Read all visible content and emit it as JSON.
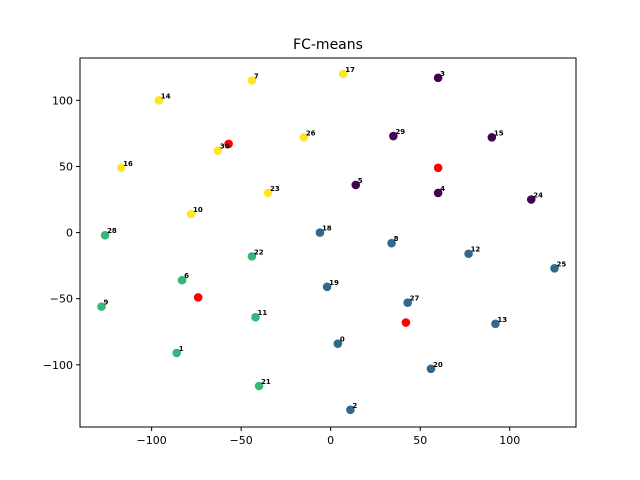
{
  "chart_data": {
    "type": "scatter",
    "title": "FC-means",
    "xlabel": "",
    "ylabel": "",
    "xlim": [
      -140,
      137
    ],
    "ylim": [
      -147,
      132
    ],
    "xticks": [
      -100,
      -50,
      0,
      50,
      100
    ],
    "yticks": [
      -100,
      -50,
      0,
      50,
      100
    ],
    "tick_labels_x": [
      "−100",
      "−50",
      "0",
      "50",
      "100"
    ],
    "tick_labels_y": [
      "−100",
      "−50",
      "0",
      "50",
      "100"
    ],
    "grid": false,
    "cluster_colors": [
      "#440154",
      "#31688e",
      "#35b779",
      "#fde725"
    ],
    "centroid_color": "#ff0000",
    "points": [
      {
        "label": "0",
        "x": 4,
        "y": -84,
        "cluster": 1
      },
      {
        "label": "1",
        "x": -86,
        "y": -91,
        "cluster": 2
      },
      {
        "label": "2",
        "x": 11,
        "y": -134,
        "cluster": 1
      },
      {
        "label": "3",
        "x": 60,
        "y": 117,
        "cluster": 0
      },
      {
        "label": "4",
        "x": 60,
        "y": 30,
        "cluster": 0
      },
      {
        "label": "5",
        "x": 14,
        "y": 36,
        "cluster": 0
      },
      {
        "label": "6",
        "x": -83,
        "y": -36,
        "cluster": 2
      },
      {
        "label": "7",
        "x": -44,
        "y": 115,
        "cluster": 3
      },
      {
        "label": "8",
        "x": 34,
        "y": -8,
        "cluster": 1
      },
      {
        "label": "9",
        "x": -128,
        "y": -56,
        "cluster": 2
      },
      {
        "label": "10",
        "x": -78,
        "y": 14,
        "cluster": 3
      },
      {
        "label": "11",
        "x": -42,
        "y": -64,
        "cluster": 2
      },
      {
        "label": "12",
        "x": 77,
        "y": -16,
        "cluster": 1
      },
      {
        "label": "13",
        "x": 92,
        "y": -69,
        "cluster": 1
      },
      {
        "label": "14",
        "x": -96,
        "y": 100,
        "cluster": 3
      },
      {
        "label": "15",
        "x": 90,
        "y": 72,
        "cluster": 0
      },
      {
        "label": "16",
        "x": -117,
        "y": 49,
        "cluster": 3
      },
      {
        "label": "17",
        "x": 7,
        "y": 120,
        "cluster": 3
      },
      {
        "label": "18",
        "x": -6,
        "y": 0,
        "cluster": 1
      },
      {
        "label": "19",
        "x": -2,
        "y": -41,
        "cluster": 1
      },
      {
        "label": "20",
        "x": 56,
        "y": -103,
        "cluster": 1
      },
      {
        "label": "21",
        "x": -40,
        "y": -116,
        "cluster": 2
      },
      {
        "label": "22",
        "x": -44,
        "y": -18,
        "cluster": 2
      },
      {
        "label": "23",
        "x": -35,
        "y": 30,
        "cluster": 3
      },
      {
        "label": "24",
        "x": 112,
        "y": 25,
        "cluster": 0
      },
      {
        "label": "25",
        "x": 125,
        "y": -27,
        "cluster": 1
      },
      {
        "label": "26",
        "x": -15,
        "y": 72,
        "cluster": 3
      },
      {
        "label": "27",
        "x": 43,
        "y": -53,
        "cluster": 1
      },
      {
        "label": "28",
        "x": -126,
        "y": -2,
        "cluster": 2
      },
      {
        "label": "29",
        "x": 35,
        "y": 73,
        "cluster": 0
      },
      {
        "label": "30",
        "x": -63,
        "y": 62,
        "cluster": 3
      }
    ],
    "centroids": [
      {
        "x": 60,
        "y": 49
      },
      {
        "x": -57,
        "y": 67
      },
      {
        "x": -74,
        "y": -49
      },
      {
        "x": 42,
        "y": -68
      }
    ]
  }
}
